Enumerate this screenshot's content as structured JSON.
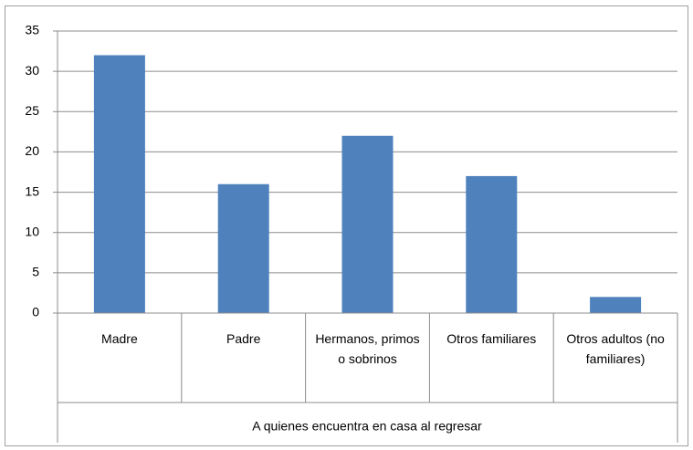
{
  "chart_data": {
    "type": "bar",
    "categories": [
      "Madre",
      "Padre",
      "Hermanos, primos o sobrinos",
      "Otros familiares",
      "Otros adultos (no familiares)"
    ],
    "values": [
      32,
      16,
      22,
      17,
      2
    ],
    "color": "#4f81bd",
    "x_label": "A quienes encuentra en casa al regresar",
    "ylim": [
      0,
      35
    ],
    "yticks": [
      0,
      5,
      10,
      15,
      20,
      25,
      30,
      35
    ],
    "grid": true
  }
}
